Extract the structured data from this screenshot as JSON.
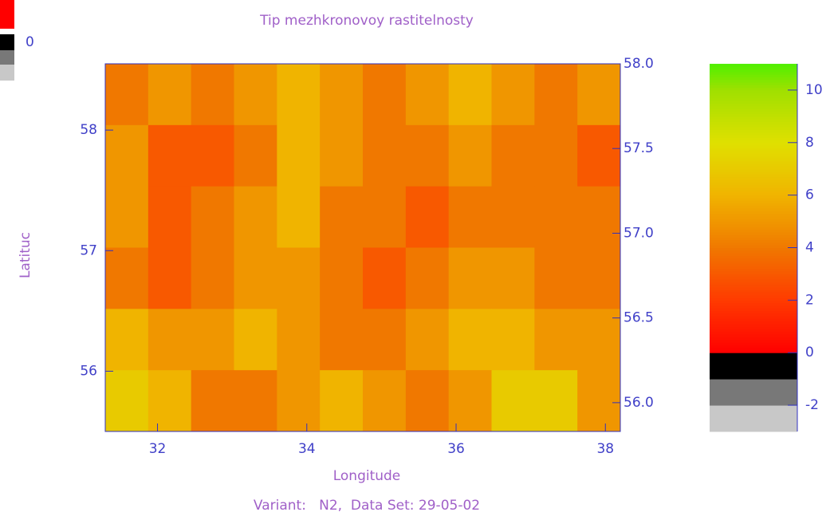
{
  "chart_data": {
    "type": "heatmap",
    "title": "Tip mezhkronovoy rastitelnosty",
    "xlabel": "Longitude",
    "ylabel": "Latituc",
    "footer": "Variant:   N2,  Data Set: 29-05-02",
    "inset_tick": "0",
    "xlim": [
      31.3,
      38.2
    ],
    "xticks": [
      32,
      34,
      36,
      38
    ],
    "ylim": [
      55.5,
      58.55
    ],
    "yticks": [
      56,
      57,
      58
    ],
    "y2lim": [
      55.83,
      58.0
    ],
    "y2ticks": [
      {
        "value": 56,
        "label": "56.0"
      },
      {
        "value": 56.5,
        "label": "56.5"
      },
      {
        "value": 57,
        "label": "57.0"
      },
      {
        "value": 57.5,
        "label": "57.5"
      },
      {
        "value": 58,
        "label": "58.0"
      }
    ],
    "axis_color": "#3030c0",
    "values": [
      [
        4,
        5,
        4,
        5,
        6,
        5,
        4,
        5,
        6,
        5,
        4,
        5
      ],
      [
        5,
        3,
        3,
        4,
        6,
        5,
        4,
        4,
        5,
        4,
        4,
        3
      ],
      [
        5,
        3,
        4,
        5,
        6,
        4,
        4,
        3,
        4,
        4,
        4,
        4
      ],
      [
        4,
        3,
        4,
        5,
        5,
        4,
        3,
        4,
        5,
        5,
        4,
        4
      ],
      [
        6,
        5,
        5,
        6,
        5,
        4,
        4,
        5,
        6,
        6,
        5,
        5
      ],
      [
        7,
        6,
        4,
        4,
        5,
        6,
        5,
        4,
        5,
        7,
        7,
        5
      ]
    ],
    "colorbar": {
      "lim": [
        -3,
        11
      ],
      "ticks": [
        -2,
        0,
        2,
        4,
        6,
        8,
        10
      ],
      "stops": [
        {
          "value": -3,
          "color": "#c8c8c8"
        },
        {
          "value": -2,
          "color": "#787878"
        },
        {
          "value": -1,
          "color": "#000000"
        },
        {
          "value": 0,
          "color": "#ff0000"
        },
        {
          "value": 2,
          "color": "#ff3a00"
        },
        {
          "value": 4,
          "color": "#f07800"
        },
        {
          "value": 6,
          "color": "#f0b400"
        },
        {
          "value": 8,
          "color": "#e0e000"
        },
        {
          "value": 10,
          "color": "#a0e000"
        },
        {
          "value": 11,
          "color": "#50f000"
        }
      ]
    }
  }
}
